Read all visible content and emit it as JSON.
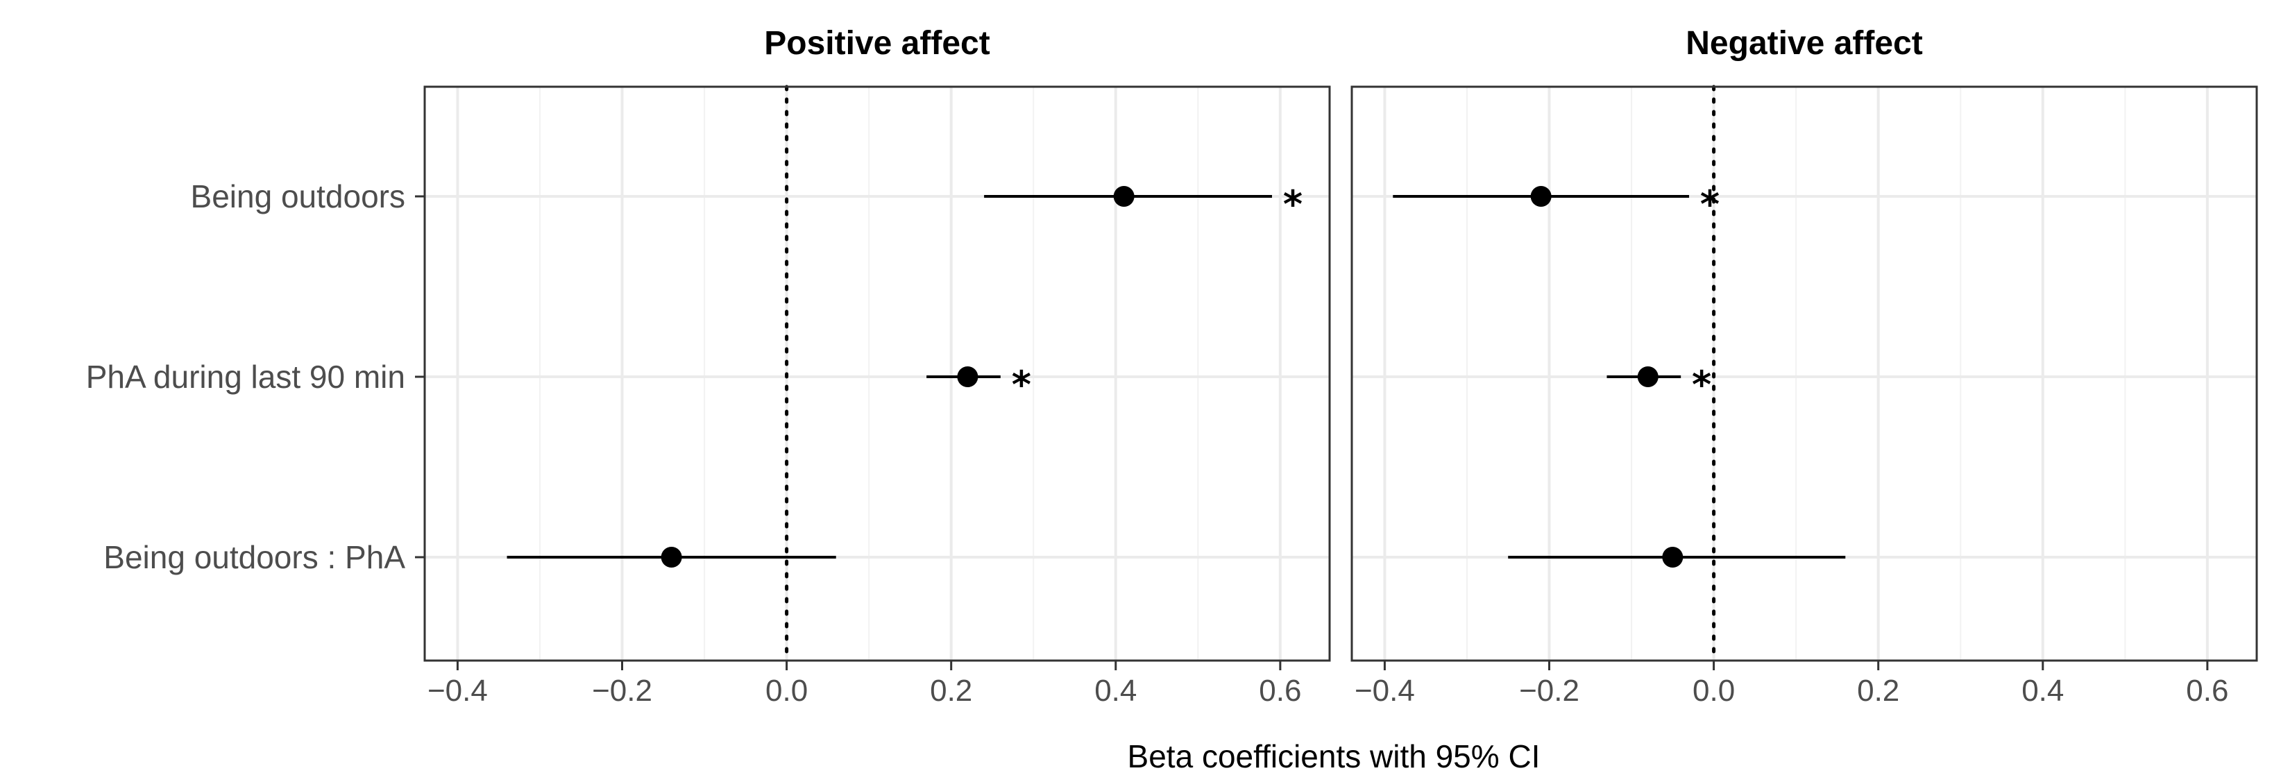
{
  "chart_data": {
    "type": "scatter",
    "subtype": "coefficient-plot",
    "x_label": "Beta coefficients with 95% CI",
    "x_ticks": [
      "−0.4",
      "−0.2",
      "0.0",
      "0.2",
      "0.4",
      "0.6"
    ],
    "x_tick_values": [
      -0.4,
      -0.2,
      0.0,
      0.2,
      0.4,
      0.6
    ],
    "xlim": [
      -0.44,
      0.66
    ],
    "reference_line": 0.0,
    "categories": [
      "Being outdoors",
      "PhA during last 90 min",
      "Being outdoors : PhA"
    ],
    "significance_marker": "*",
    "panels": [
      {
        "title": "Positive affect",
        "estimates": [
          {
            "category": "Being outdoors",
            "beta": 0.41,
            "ci_low": 0.24,
            "ci_high": 0.59,
            "significant": true
          },
          {
            "category": "PhA during last 90 min",
            "beta": 0.22,
            "ci_low": 0.17,
            "ci_high": 0.26,
            "significant": true
          },
          {
            "category": "Being outdoors : PhA",
            "beta": -0.14,
            "ci_low": -0.34,
            "ci_high": 0.06,
            "significant": false
          }
        ]
      },
      {
        "title": "Negative affect",
        "estimates": [
          {
            "category": "Being outdoors",
            "beta": -0.21,
            "ci_low": -0.39,
            "ci_high": -0.03,
            "significant": true
          },
          {
            "category": "PhA during last 90 min",
            "beta": -0.08,
            "ci_low": -0.13,
            "ci_high": -0.04,
            "significant": true
          },
          {
            "category": "Being outdoors : PhA",
            "beta": -0.05,
            "ci_low": -0.25,
            "ci_high": 0.16,
            "significant": false
          }
        ]
      }
    ]
  }
}
